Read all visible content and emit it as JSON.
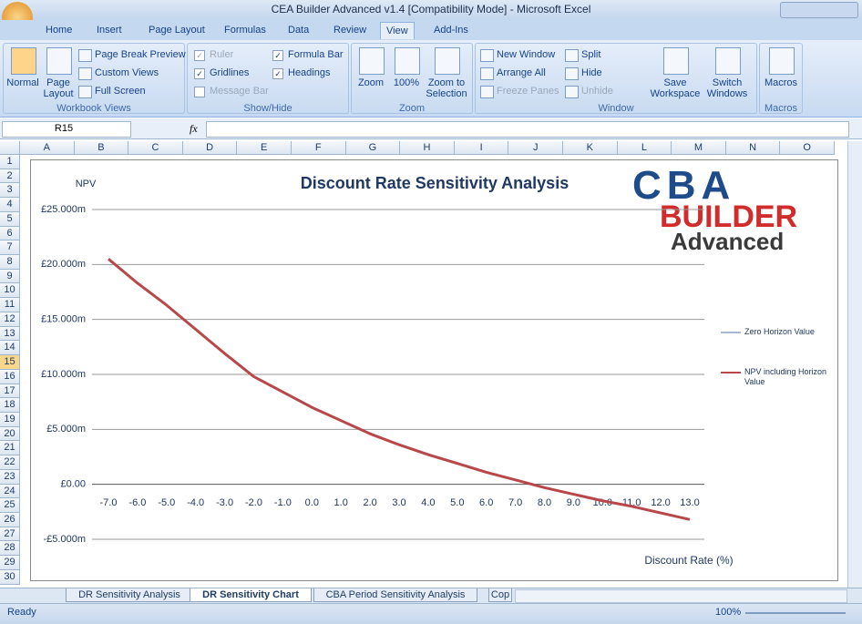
{
  "window": {
    "title": "CEA Builder Advanced v1.4  [Compatibility Mode] - Microsoft Excel"
  },
  "tabs": [
    "Home",
    "Insert",
    "Page Layout",
    "Formulas",
    "Data",
    "Review",
    "View",
    "Add-Ins"
  ],
  "ribbon": {
    "groups": [
      {
        "label": "Workbook Views",
        "items": [
          "Normal",
          "Page Layout",
          "Page Break Preview",
          "Custom Views",
          "Full Screen"
        ]
      },
      {
        "label": "Show/Hide",
        "items": [
          "Ruler",
          "Gridlines",
          "Message Bar",
          "Formula Bar",
          "Headings"
        ]
      },
      {
        "label": "Zoom",
        "items": [
          "Zoom",
          "100%",
          "Zoom to Selection"
        ]
      },
      {
        "label": "Window",
        "items": [
          "New Window",
          "Arrange All",
          "Freeze Panes",
          "Split",
          "Hide",
          "Unhide",
          "Save Workspace",
          "Switch Windows"
        ]
      },
      {
        "label": "Macros",
        "items": [
          "Macros"
        ]
      }
    ]
  },
  "formula_bar": {
    "name_box": "R15",
    "fx": "fx"
  },
  "columns": [
    "A",
    "B",
    "C",
    "D",
    "E",
    "F",
    "G",
    "H",
    "I",
    "J",
    "K",
    "L",
    "M",
    "N",
    "O"
  ],
  "rows": [
    1,
    2,
    3,
    4,
    5,
    6,
    7,
    8,
    9,
    10,
    11,
    12,
    13,
    14,
    15,
    16,
    17,
    18,
    19,
    20,
    21,
    22,
    23,
    24,
    25,
    26,
    27,
    28,
    29,
    30
  ],
  "sheet_tabs": [
    "DR Sensitivity Analysis",
    "DR Sensitivity Chart",
    "CBA Period Sensitivity Analysis",
    "Cop"
  ],
  "status": {
    "text": "Ready",
    "zoom": "100%"
  },
  "logo": {
    "top": "CBA",
    "middle": "BUILDER",
    "bottom": "Advanced"
  },
  "chart_data": {
    "type": "line",
    "title": "Discount Rate Sensitivity Analysis",
    "y_label": "NPV",
    "x_label": "Discount Rate (%)",
    "categories": [
      "-7.0",
      "-6.0",
      "-5.0",
      "-4.0",
      "-3.0",
      "-2.0",
      "-1.0",
      "0.0",
      "1.0",
      "2.0",
      "3.0",
      "4.0",
      "5.0",
      "6.0",
      "7.0",
      "8.0",
      "9.0",
      "10.0",
      "11.0",
      "12.0",
      "13.0"
    ],
    "series": [
      {
        "name": "Zero Horizon Value",
        "color": "#4f6f9f",
        "values": [
          null,
          null,
          null,
          null,
          null,
          null,
          null,
          null,
          null,
          null,
          null,
          null,
          null,
          null,
          null,
          null,
          null,
          null,
          null,
          null,
          null
        ]
      },
      {
        "name": "NPV including Horizon Value",
        "color": "#b8474a",
        "values": [
          20.5,
          18.3,
          16.3,
          14.1,
          11.9,
          9.8,
          8.4,
          7.0,
          5.8,
          4.6,
          3.6,
          2.7,
          1.9,
          1.1,
          0.4,
          -0.3,
          -0.9,
          -1.5,
          -2.0,
          -2.6,
          -3.2
        ]
      }
    ],
    "ylim": [
      -5,
      25
    ],
    "yticks": [
      {
        "value": -5,
        "label": "-£5.000m"
      },
      {
        "value": 0,
        "label": "£0.00"
      },
      {
        "value": 5,
        "label": "£5.000m"
      },
      {
        "value": 10,
        "label": "£10.000m"
      },
      {
        "value": 15,
        "label": "£15.000m"
      },
      {
        "value": 20,
        "label": "£20.000m"
      },
      {
        "value": 25,
        "label": "£25.000m"
      }
    ],
    "grid": true,
    "legend": "right"
  }
}
